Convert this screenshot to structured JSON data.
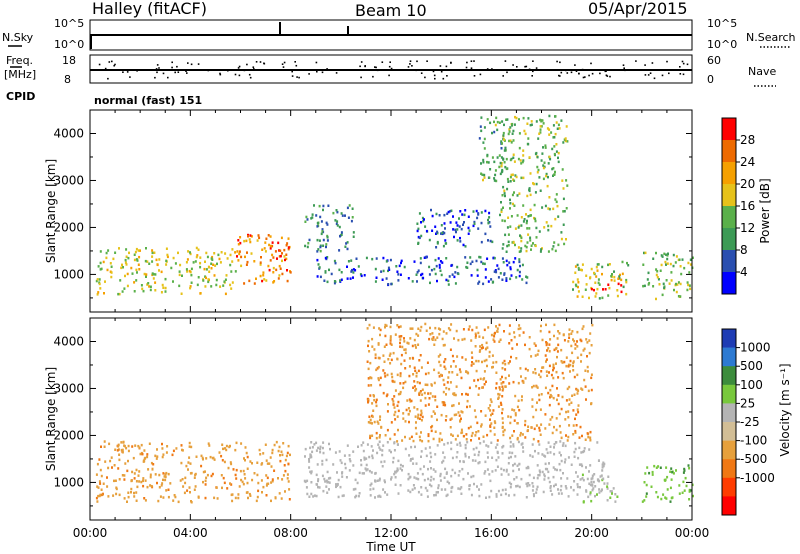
{
  "header": {
    "station": "Halley (fitACF)",
    "beam": "Beam 10",
    "date": "05/Apr/2015"
  },
  "strips": {
    "nsky_label": "N.Sky",
    "nsky_ticks": [
      "10^5",
      "10^0"
    ],
    "nsearch_label": "N.Search",
    "nsearch_ticks": [
      "10^5",
      "10^0"
    ],
    "freq_label": "Freq.",
    "freq_unit": "[MHz]",
    "freq_ticks": [
      "18",
      "8"
    ],
    "nave_label": "Nave",
    "nave_ticks": [
      "60",
      "0"
    ],
    "cpid_label": "CPID",
    "cpid_value": "normal (fast) 151"
  },
  "colors": {
    "power": [
      "#0000ff",
      "#2a4fb0",
      "#3c9a55",
      "#5ab04a",
      "#e6c21a",
      "#f5a000",
      "#ee6a00",
      "#ff0000"
    ],
    "velocity": [
      "#1e3cb4",
      "#2d7ad2",
      "#3c8c3c",
      "#78c83c",
      "#b4b4b4",
      "#d2be96",
      "#e6a03c",
      "#f07814",
      "#ff3c00",
      "#ff0000"
    ],
    "ground_scatter": "#b4b4b4"
  },
  "chart_data": [
    {
      "type": "heatmap",
      "name": "power",
      "ylabel": "Slant Range [km]",
      "xlabel": "",
      "yticks": [
        "1000",
        "2000",
        "3000",
        "4000"
      ],
      "ylim": [
        200,
        4500
      ],
      "xlim_hours": [
        0,
        24
      ],
      "colorbar_label": "Power [dB]",
      "colorbar_ticks": [
        "4",
        "8",
        "12",
        "16",
        "20",
        "24",
        "28"
      ],
      "clim": [
        0,
        32
      ],
      "regions": [
        {
          "t": [
            0.2,
            5.8
          ],
          "r": [
            600,
            1600
          ],
          "v": 17
        },
        {
          "t": [
            5.8,
            8.0
          ],
          "r": [
            800,
            1900
          ],
          "v": 24
        },
        {
          "t": [
            7.3,
            7.9
          ],
          "r": [
            1300,
            1700
          ],
          "v": 29
        },
        {
          "t": [
            8.5,
            10.5
          ],
          "r": [
            1500,
            2500
          ],
          "v": 9
        },
        {
          "t": [
            9.0,
            17.5
          ],
          "r": [
            800,
            1400
          ],
          "v": 6
        },
        {
          "t": [
            13.0,
            16.0
          ],
          "r": [
            1600,
            2400
          ],
          "v": 6
        },
        {
          "t": [
            15.5,
            16.6
          ],
          "r": [
            3000,
            4400
          ],
          "v": 12
        },
        {
          "t": [
            16.3,
            19.0
          ],
          "r": [
            1500,
            4400
          ],
          "v": 14
        },
        {
          "t": [
            19.2,
            21.5
          ],
          "r": [
            500,
            1300
          ],
          "v": 16
        },
        {
          "t": [
            19.8,
            21.2
          ],
          "r": [
            650,
            850
          ],
          "v": 31
        },
        {
          "t": [
            22.0,
            24.0
          ],
          "r": [
            500,
            1500
          ],
          "v": 15
        }
      ]
    },
    {
      "type": "heatmap",
      "name": "velocity",
      "ylabel": "Slant Range [km]",
      "xlabel": "Time UT",
      "yticks": [
        "1000",
        "2000",
        "3000",
        "4000"
      ],
      "ylim": [
        200,
        4500
      ],
      "xticks": [
        "00:00",
        "04:00",
        "08:00",
        "12:00",
        "16:00",
        "20:00",
        "00:00"
      ],
      "xlim_hours": [
        0,
        24
      ],
      "colorbar_label": "Velocity [m s⁻¹]",
      "colorbar_ticks": [
        "1000",
        "500",
        "100",
        "25",
        "-25",
        "-100",
        "-500",
        "-1000"
      ],
      "clim": [
        -1250,
        1250
      ],
      "regions": [
        {
          "t": [
            0.2,
            8.0
          ],
          "r": [
            600,
            1900
          ],
          "v": -400
        },
        {
          "t": [
            8.5,
            20.5
          ],
          "r": [
            700,
            1900
          ],
          "v": 0,
          "ground_scatter": true
        },
        {
          "t": [
            11.0,
            20.0
          ],
          "r": [
            1900,
            4400
          ],
          "v": -450
        },
        {
          "t": [
            19.5,
            21.0
          ],
          "r": [
            600,
            1200
          ],
          "v": 200
        },
        {
          "t": [
            22.0,
            24.0
          ],
          "r": [
            600,
            1400
          ],
          "v": 400
        }
      ]
    }
  ]
}
